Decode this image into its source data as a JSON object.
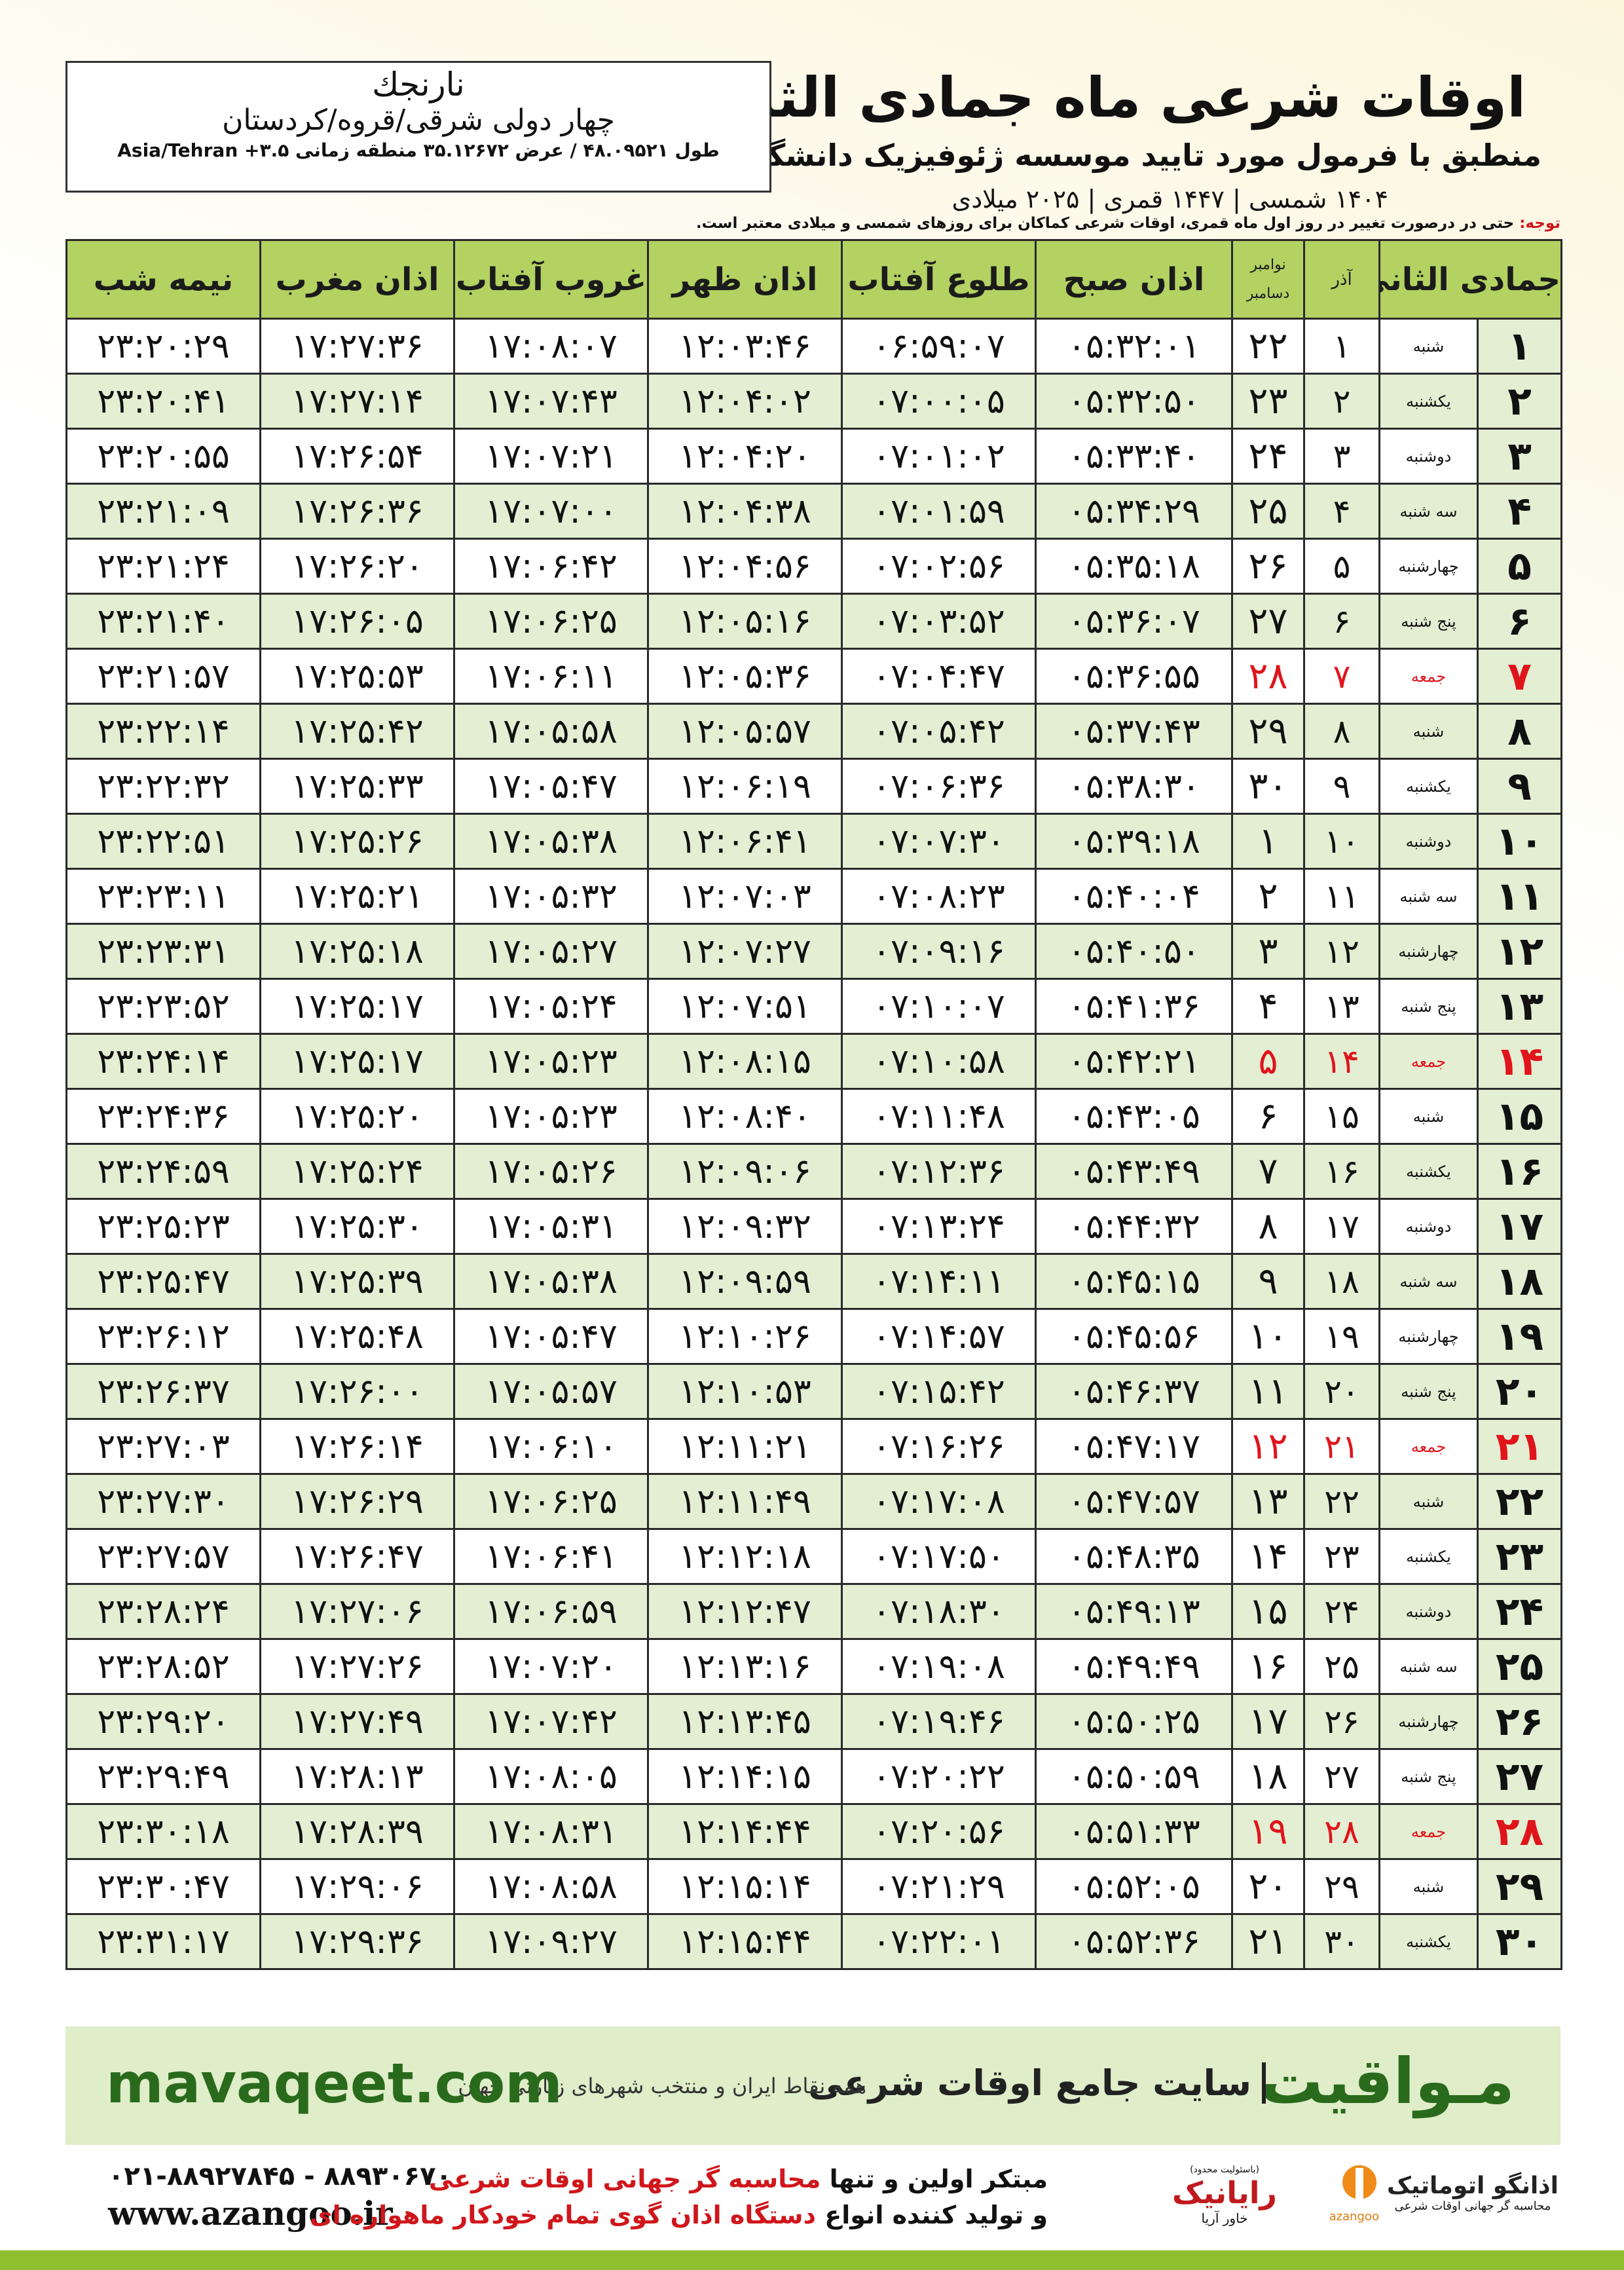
{
  "header": {
    "title": "اوقات شرعی ماه جمادی الثانی",
    "subtitle": "منطبق با فرمول مورد تایید موسسه ژئوفیزیک دانشگاه تهران",
    "dates": "۱۴۰۴ شمسی | ۱۴۴۷ قمری | ۲۰۲۵ میلادی"
  },
  "location": {
    "name": "نارنجك",
    "region": "چهار دولی شرقی/قروه/کردستان",
    "coords": "طول ۴۸.۰۹۵۲۱ / عرض ۳۵.۱۲۶۷۲ منطقه زمانی ۳.۵+ Asia/Tehran"
  },
  "note": {
    "label": "توجه:",
    "text": "حتی در درصورت تغییر در روز اول ماه قمری، اوقات شرعی کماکان برای روزهای شمسی و میلادی معتبر است."
  },
  "table": {
    "columns": {
      "hijri": "جمادی الثانی",
      "azar": "آذر",
      "greg_top": "نوامبر",
      "greg_bottom": "دسامبر",
      "times": [
        "اذان صبح",
        "طلوع آفتاب",
        "اذان ظهر",
        "غروب آفتاب",
        "اذان مغرب",
        "نیمه شب"
      ]
    },
    "rows": [
      [
        "۱",
        "شنبه",
        "۱",
        "۲۲",
        "۰۵:۳۲:۰۱",
        "۰۶:۵۹:۰۷",
        "۱۲:۰۳:۴۶",
        "۱۷:۰۸:۰۷",
        "۱۷:۲۷:۳۶",
        "۲۳:۲۰:۲۹"
      ],
      [
        "۲",
        "یکشنبه",
        "۲",
        "۲۳",
        "۰۵:۳۲:۵۰",
        "۰۷:۰۰:۰۵",
        "۱۲:۰۴:۰۲",
        "۱۷:۰۷:۴۳",
        "۱۷:۲۷:۱۴",
        "۲۳:۲۰:۴۱"
      ],
      [
        "۳",
        "دوشنبه",
        "۳",
        "۲۴",
        "۰۵:۳۳:۴۰",
        "۰۷:۰۱:۰۲",
        "۱۲:۰۴:۲۰",
        "۱۷:۰۷:۲۱",
        "۱۷:۲۶:۵۴",
        "۲۳:۲۰:۵۵"
      ],
      [
        "۴",
        "سه شنبه",
        "۴",
        "۲۵",
        "۰۵:۳۴:۲۹",
        "۰۷:۰۱:۵۹",
        "۱۲:۰۴:۳۸",
        "۱۷:۰۷:۰۰",
        "۱۷:۲۶:۳۶",
        "۲۳:۲۱:۰۹"
      ],
      [
        "۵",
        "چهارشنبه",
        "۵",
        "۲۶",
        "۰۵:۳۵:۱۸",
        "۰۷:۰۲:۵۶",
        "۱۲:۰۴:۵۶",
        "۱۷:۰۶:۴۲",
        "۱۷:۲۶:۲۰",
        "۲۳:۲۱:۲۴"
      ],
      [
        "۶",
        "پنج شنبه",
        "۶",
        "۲۷",
        "۰۵:۳۶:۰۷",
        "۰۷:۰۳:۵۲",
        "۱۲:۰۵:۱۶",
        "۱۷:۰۶:۲۵",
        "۱۷:۲۶:۰۵",
        "۲۳:۲۱:۴۰"
      ],
      [
        "۷",
        "جمعه",
        "۷",
        "۲۸",
        "۰۵:۳۶:۵۵",
        "۰۷:۰۴:۴۷",
        "۱۲:۰۵:۳۶",
        "۱۷:۰۶:۱۱",
        "۱۷:۲۵:۵۳",
        "۲۳:۲۱:۵۷"
      ],
      [
        "۸",
        "شنبه",
        "۸",
        "۲۹",
        "۰۵:۳۷:۴۳",
        "۰۷:۰۵:۴۲",
        "۱۲:۰۵:۵۷",
        "۱۷:۰۵:۵۸",
        "۱۷:۲۵:۴۲",
        "۲۳:۲۲:۱۴"
      ],
      [
        "۹",
        "یکشنبه",
        "۹",
        "۳۰",
        "۰۵:۳۸:۳۰",
        "۰۷:۰۶:۳۶",
        "۱۲:۰۶:۱۹",
        "۱۷:۰۵:۴۷",
        "۱۷:۲۵:۳۳",
        "۲۳:۲۲:۳۲"
      ],
      [
        "۱۰",
        "دوشنبه",
        "۱۰",
        "۱",
        "۰۵:۳۹:۱۸",
        "۰۷:۰۷:۳۰",
        "۱۲:۰۶:۴۱",
        "۱۷:۰۵:۳۸",
        "۱۷:۲۵:۲۶",
        "۲۳:۲۲:۵۱"
      ],
      [
        "۱۱",
        "سه شنبه",
        "۱۱",
        "۲",
        "۰۵:۴۰:۰۴",
        "۰۷:۰۸:۲۳",
        "۱۲:۰۷:۰۳",
        "۱۷:۰۵:۳۲",
        "۱۷:۲۵:۲۱",
        "۲۳:۲۳:۱۱"
      ],
      [
        "۱۲",
        "چهارشنبه",
        "۱۲",
        "۳",
        "۰۵:۴۰:۵۰",
        "۰۷:۰۹:۱۶",
        "۱۲:۰۷:۲۷",
        "۱۷:۰۵:۲۷",
        "۱۷:۲۵:۱۸",
        "۲۳:۲۳:۳۱"
      ],
      [
        "۱۳",
        "پنج شنبه",
        "۱۳",
        "۴",
        "۰۵:۴۱:۳۶",
        "۰۷:۱۰:۰۷",
        "۱۲:۰۷:۵۱",
        "۱۷:۰۵:۲۴",
        "۱۷:۲۵:۱۷",
        "۲۳:۲۳:۵۲"
      ],
      [
        "۱۴",
        "جمعه",
        "۱۴",
        "۵",
        "۰۵:۴۲:۲۱",
        "۰۷:۱۰:۵۸",
        "۱۲:۰۸:۱۵",
        "۱۷:۰۵:۲۳",
        "۱۷:۲۵:۱۷",
        "۲۳:۲۴:۱۴"
      ],
      [
        "۱۵",
        "شنبه",
        "۱۵",
        "۶",
        "۰۵:۴۳:۰۵",
        "۰۷:۱۱:۴۸",
        "۱۲:۰۸:۴۰",
        "۱۷:۰۵:۲۳",
        "۱۷:۲۵:۲۰",
        "۲۳:۲۴:۳۶"
      ],
      [
        "۱۶",
        "یکشنبه",
        "۱۶",
        "۷",
        "۰۵:۴۳:۴۹",
        "۰۷:۱۲:۳۶",
        "۱۲:۰۹:۰۶",
        "۱۷:۰۵:۲۶",
        "۱۷:۲۵:۲۴",
        "۲۳:۲۴:۵۹"
      ],
      [
        "۱۷",
        "دوشنبه",
        "۱۷",
        "۸",
        "۰۵:۴۴:۳۲",
        "۰۷:۱۳:۲۴",
        "۱۲:۰۹:۳۲",
        "۱۷:۰۵:۳۱",
        "۱۷:۲۵:۳۰",
        "۲۳:۲۵:۲۳"
      ],
      [
        "۱۸",
        "سه شنبه",
        "۱۸",
        "۹",
        "۰۵:۴۵:۱۵",
        "۰۷:۱۴:۱۱",
        "۱۲:۰۹:۵۹",
        "۱۷:۰۵:۳۸",
        "۱۷:۲۵:۳۹",
        "۲۳:۲۵:۴۷"
      ],
      [
        "۱۹",
        "چهارشنبه",
        "۱۹",
        "۱۰",
        "۰۵:۴۵:۵۶",
        "۰۷:۱۴:۵۷",
        "۱۲:۱۰:۲۶",
        "۱۷:۰۵:۴۷",
        "۱۷:۲۵:۴۸",
        "۲۳:۲۶:۱۲"
      ],
      [
        "۲۰",
        "پنج شنبه",
        "۲۰",
        "۱۱",
        "۰۵:۴۶:۳۷",
        "۰۷:۱۵:۴۲",
        "۱۲:۱۰:۵۳",
        "۱۷:۰۵:۵۷",
        "۱۷:۲۶:۰۰",
        "۲۳:۲۶:۳۷"
      ],
      [
        "۲۱",
        "جمعه",
        "۲۱",
        "۱۲",
        "۰۵:۴۷:۱۷",
        "۰۷:۱۶:۲۶",
        "۱۲:۱۱:۲۱",
        "۱۷:۰۶:۱۰",
        "۱۷:۲۶:۱۴",
        "۲۳:۲۷:۰۳"
      ],
      [
        "۲۲",
        "شنبه",
        "۲۲",
        "۱۳",
        "۰۵:۴۷:۵۷",
        "۰۷:۱۷:۰۸",
        "۱۲:۱۱:۴۹",
        "۱۷:۰۶:۲۵",
        "۱۷:۲۶:۲۹",
        "۲۳:۲۷:۳۰"
      ],
      [
        "۲۳",
        "یکشنبه",
        "۲۳",
        "۱۴",
        "۰۵:۴۸:۳۵",
        "۰۷:۱۷:۵۰",
        "۱۲:۱۲:۱۸",
        "۱۷:۰۶:۴۱",
        "۱۷:۲۶:۴۷",
        "۲۳:۲۷:۵۷"
      ],
      [
        "۲۴",
        "دوشنبه",
        "۲۴",
        "۱۵",
        "۰۵:۴۹:۱۳",
        "۰۷:۱۸:۳۰",
        "۱۲:۱۲:۴۷",
        "۱۷:۰۶:۵۹",
        "۱۷:۲۷:۰۶",
        "۲۳:۲۸:۲۴"
      ],
      [
        "۲۵",
        "سه شنبه",
        "۲۵",
        "۱۶",
        "۰۵:۴۹:۴۹",
        "۰۷:۱۹:۰۸",
        "۱۲:۱۳:۱۶",
        "۱۷:۰۷:۲۰",
        "۱۷:۲۷:۲۶",
        "۲۳:۲۸:۵۲"
      ],
      [
        "۲۶",
        "چهارشنبه",
        "۲۶",
        "۱۷",
        "۰۵:۵۰:۲۵",
        "۰۷:۱۹:۴۶",
        "۱۲:۱۳:۴۵",
        "۱۷:۰۷:۴۲",
        "۱۷:۲۷:۴۹",
        "۲۳:۲۹:۲۰"
      ],
      [
        "۲۷",
        "پنج شنبه",
        "۲۷",
        "۱۸",
        "۰۵:۵۰:۵۹",
        "۰۷:۲۰:۲۲",
        "۱۲:۱۴:۱۵",
        "۱۷:۰۸:۰۵",
        "۱۷:۲۸:۱۳",
        "۲۳:۲۹:۴۹"
      ],
      [
        "۲۸",
        "جمعه",
        "۲۸",
        "۱۹",
        "۰۵:۵۱:۳۳",
        "۰۷:۲۰:۵۶",
        "۱۲:۱۴:۴۴",
        "۱۷:۰۸:۳۱",
        "۱۷:۲۸:۳۹",
        "۲۳:۳۰:۱۸"
      ],
      [
        "۲۹",
        "شنبه",
        "۲۹",
        "۲۰",
        "۰۵:۵۲:۰۵",
        "۰۷:۲۱:۲۹",
        "۱۲:۱۵:۱۴",
        "۱۷:۰۸:۵۸",
        "۱۷:۲۹:۰۶",
        "۲۳:۳۰:۴۷"
      ],
      [
        "۳۰",
        "یکشنبه",
        "۳۰",
        "۲۱",
        "۰۵:۵۲:۳۶",
        "۰۷:۲۲:۰۱",
        "۱۲:۱۵:۴۴",
        "۱۷:۰۹:۲۷",
        "۱۷:۲۹:۳۶",
        "۲۳:۳۱:۱۷"
      ]
    ]
  },
  "banner": {
    "brand": "مـواقیت",
    "tagline": "سایت جامع اوقات شرعی",
    "coverage": "همه نقاط ایران و منتخب شهرهای زیارتی جهان",
    "website": "mavaqeet.com"
  },
  "footer": {
    "phone": "۰۲۱-۸۸۹۲۷۸۴۵ - ۸۸۹۳۰۶۷۰",
    "url": "www.azangoo.ir",
    "line1": [
      "مبتکر اولین و تنها ",
      "محاسبه گر جهانی اوقات شرعی"
    ],
    "line2": [
      "و تولید کننده انواع ",
      "دستگاه اذان گوی تمام خودکار ماهواره ای"
    ],
    "partner": {
      "note": "(باسئولیت محدود)",
      "name": "رایانیک",
      "sub": "خاور آریا"
    },
    "logo": {
      "name": "اذانگو اتوماتیک",
      "sub": "محاسبه گر جهانی اوقات شرعی",
      "latin": "azangoo"
    }
  }
}
